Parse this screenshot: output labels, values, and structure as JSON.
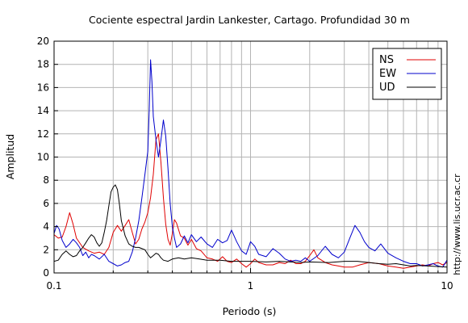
{
  "chart_data": {
    "type": "line",
    "title": "Cociente espectral Jardin Lankester, Cartago. Profundidad 30 m",
    "xlabel": "Periodo (s)",
    "ylabel": "Amplitud",
    "x_scale": "log",
    "xlim": [
      0.1,
      10
    ],
    "ylim": [
      0,
      20
    ],
    "x_ticks": [
      0.1,
      1,
      10
    ],
    "x_tick_labels": [
      "0.1",
      "1",
      "10"
    ],
    "y_ticks": [
      0,
      2,
      4,
      6,
      8,
      10,
      12,
      14,
      16,
      18,
      20
    ],
    "y_tick_labels": [
      "0",
      "2",
      "4",
      "6",
      "8",
      "10",
      "12",
      "14",
      "16",
      "18",
      "20"
    ],
    "grid": true,
    "legend_position": "top-right",
    "side_text": "http://www.lis.ucr.ac.cr",
    "series": [
      {
        "name": "NS",
        "color": "#e00000",
        "points": [
          [
            0.1,
            3.3
          ],
          [
            0.105,
            3.0
          ],
          [
            0.11,
            3.1
          ],
          [
            0.115,
            4.0
          ],
          [
            0.12,
            5.2
          ],
          [
            0.125,
            4.2
          ],
          [
            0.13,
            3.0
          ],
          [
            0.14,
            2.2
          ],
          [
            0.15,
            1.9
          ],
          [
            0.16,
            1.7
          ],
          [
            0.17,
            1.8
          ],
          [
            0.18,
            1.6
          ],
          [
            0.19,
            2.2
          ],
          [
            0.2,
            3.5
          ],
          [
            0.21,
            4.1
          ],
          [
            0.22,
            3.6
          ],
          [
            0.23,
            4.1
          ],
          [
            0.24,
            4.6
          ],
          [
            0.25,
            3.5
          ],
          [
            0.26,
            2.5
          ],
          [
            0.27,
            2.9
          ],
          [
            0.28,
            3.8
          ],
          [
            0.29,
            4.4
          ],
          [
            0.3,
            5.2
          ],
          [
            0.31,
            6.5
          ],
          [
            0.32,
            8.5
          ],
          [
            0.33,
            11.5
          ],
          [
            0.34,
            12.0
          ],
          [
            0.35,
            9.5
          ],
          [
            0.36,
            6.5
          ],
          [
            0.37,
            4.2
          ],
          [
            0.38,
            2.9
          ],
          [
            0.39,
            2.4
          ],
          [
            0.4,
            3.4
          ],
          [
            0.41,
            4.6
          ],
          [
            0.42,
            4.3
          ],
          [
            0.44,
            3.2
          ],
          [
            0.46,
            3.0
          ],
          [
            0.48,
            2.4
          ],
          [
            0.5,
            2.9
          ],
          [
            0.53,
            2.1
          ],
          [
            0.56,
            1.9
          ],
          [
            0.6,
            1.3
          ],
          [
            0.64,
            1.2
          ],
          [
            0.68,
            1.0
          ],
          [
            0.72,
            1.4
          ],
          [
            0.76,
            1.0
          ],
          [
            0.8,
            0.9
          ],
          [
            0.85,
            1.2
          ],
          [
            0.9,
            0.8
          ],
          [
            0.95,
            0.5
          ],
          [
            1.0,
            0.8
          ],
          [
            1.05,
            1.2
          ],
          [
            1.1,
            0.9
          ],
          [
            1.2,
            0.7
          ],
          [
            1.3,
            0.7
          ],
          [
            1.4,
            0.9
          ],
          [
            1.5,
            0.8
          ],
          [
            1.6,
            1.1
          ],
          [
            1.7,
            0.8
          ],
          [
            1.8,
            0.8
          ],
          [
            1.9,
            1.0
          ],
          [
            2.0,
            1.5
          ],
          [
            2.1,
            2.0
          ],
          [
            2.2,
            1.3
          ],
          [
            2.4,
            0.9
          ],
          [
            2.6,
            0.7
          ],
          [
            2.8,
            0.6
          ],
          [
            3.0,
            0.5
          ],
          [
            3.3,
            0.5
          ],
          [
            3.6,
            0.7
          ],
          [
            4.0,
            0.9
          ],
          [
            4.5,
            0.8
          ],
          [
            5.0,
            0.6
          ],
          [
            5.5,
            0.5
          ],
          [
            6.0,
            0.4
          ],
          [
            6.5,
            0.5
          ],
          [
            7.0,
            0.6
          ],
          [
            7.5,
            0.7
          ],
          [
            8.0,
            0.6
          ],
          [
            8.5,
            0.8
          ],
          [
            9.0,
            0.9
          ],
          [
            9.5,
            0.7
          ],
          [
            10.0,
            0.9
          ]
        ]
      },
      {
        "name": "EW",
        "color": "#0000cc",
        "points": [
          [
            0.1,
            3.4
          ],
          [
            0.103,
            4.1
          ],
          [
            0.106,
            3.8
          ],
          [
            0.11,
            2.8
          ],
          [
            0.115,
            2.2
          ],
          [
            0.12,
            2.5
          ],
          [
            0.125,
            2.9
          ],
          [
            0.13,
            2.6
          ],
          [
            0.135,
            2.2
          ],
          [
            0.14,
            1.5
          ],
          [
            0.145,
            1.8
          ],
          [
            0.15,
            1.3
          ],
          [
            0.155,
            1.6
          ],
          [
            0.16,
            1.5
          ],
          [
            0.17,
            1.2
          ],
          [
            0.18,
            1.6
          ],
          [
            0.19,
            1.0
          ],
          [
            0.2,
            0.8
          ],
          [
            0.21,
            0.6
          ],
          [
            0.22,
            0.7
          ],
          [
            0.23,
            0.9
          ],
          [
            0.24,
            1.0
          ],
          [
            0.25,
            1.8
          ],
          [
            0.26,
            3.0
          ],
          [
            0.27,
            4.5
          ],
          [
            0.28,
            6.5
          ],
          [
            0.29,
            8.5
          ],
          [
            0.3,
            10.5
          ],
          [
            0.305,
            14.0
          ],
          [
            0.31,
            18.4
          ],
          [
            0.315,
            16.5
          ],
          [
            0.32,
            13.5
          ],
          [
            0.33,
            11.5
          ],
          [
            0.34,
            10.0
          ],
          [
            0.35,
            11.5
          ],
          [
            0.36,
            13.2
          ],
          [
            0.37,
            11.8
          ],
          [
            0.38,
            9.0
          ],
          [
            0.39,
            6.0
          ],
          [
            0.4,
            4.0
          ],
          [
            0.41,
            3.0
          ],
          [
            0.42,
            2.2
          ],
          [
            0.44,
            2.5
          ],
          [
            0.46,
            3.2
          ],
          [
            0.48,
            2.6
          ],
          [
            0.5,
            3.3
          ],
          [
            0.53,
            2.7
          ],
          [
            0.56,
            3.1
          ],
          [
            0.6,
            2.5
          ],
          [
            0.64,
            2.2
          ],
          [
            0.68,
            2.9
          ],
          [
            0.72,
            2.6
          ],
          [
            0.76,
            2.8
          ],
          [
            0.8,
            3.7
          ],
          [
            0.85,
            2.7
          ],
          [
            0.9,
            1.9
          ],
          [
            0.95,
            1.6
          ],
          [
            1.0,
            2.7
          ],
          [
            1.05,
            2.3
          ],
          [
            1.1,
            1.6
          ],
          [
            1.2,
            1.4
          ],
          [
            1.3,
            2.1
          ],
          [
            1.4,
            1.7
          ],
          [
            1.5,
            1.2
          ],
          [
            1.6,
            1.0
          ],
          [
            1.7,
            1.1
          ],
          [
            1.8,
            1.0
          ],
          [
            1.9,
            1.3
          ],
          [
            2.0,
            1.0
          ],
          [
            2.2,
            1.5
          ],
          [
            2.4,
            2.3
          ],
          [
            2.6,
            1.6
          ],
          [
            2.8,
            1.3
          ],
          [
            3.0,
            1.8
          ],
          [
            3.2,
            3.0
          ],
          [
            3.4,
            4.1
          ],
          [
            3.6,
            3.5
          ],
          [
            3.8,
            2.7
          ],
          [
            4.0,
            2.2
          ],
          [
            4.3,
            1.9
          ],
          [
            4.6,
            2.5
          ],
          [
            5.0,
            1.7
          ],
          [
            5.5,
            1.3
          ],
          [
            6.0,
            1.0
          ],
          [
            6.5,
            0.8
          ],
          [
            7.0,
            0.8
          ],
          [
            7.5,
            0.6
          ],
          [
            8.0,
            0.7
          ],
          [
            8.5,
            0.8
          ],
          [
            9.0,
            0.6
          ],
          [
            9.5,
            0.5
          ],
          [
            10.0,
            1.1
          ]
        ]
      },
      {
        "name": "UD",
        "color": "#000000",
        "points": [
          [
            0.1,
            1.0
          ],
          [
            0.105,
            1.1
          ],
          [
            0.11,
            1.6
          ],
          [
            0.115,
            1.9
          ],
          [
            0.12,
            1.6
          ],
          [
            0.125,
            1.4
          ],
          [
            0.13,
            1.5
          ],
          [
            0.135,
            1.9
          ],
          [
            0.14,
            2.2
          ],
          [
            0.145,
            2.6
          ],
          [
            0.15,
            3.0
          ],
          [
            0.155,
            3.3
          ],
          [
            0.16,
            3.1
          ],
          [
            0.165,
            2.6
          ],
          [
            0.17,
            2.3
          ],
          [
            0.175,
            2.6
          ],
          [
            0.18,
            3.5
          ],
          [
            0.185,
            4.5
          ],
          [
            0.19,
            5.8
          ],
          [
            0.195,
            7.0
          ],
          [
            0.2,
            7.4
          ],
          [
            0.205,
            7.6
          ],
          [
            0.21,
            7.2
          ],
          [
            0.215,
            6.0
          ],
          [
            0.22,
            4.5
          ],
          [
            0.23,
            3.2
          ],
          [
            0.24,
            2.5
          ],
          [
            0.25,
            2.3
          ],
          [
            0.26,
            2.2
          ],
          [
            0.27,
            2.2
          ],
          [
            0.28,
            2.1
          ],
          [
            0.29,
            2.0
          ],
          [
            0.3,
            1.6
          ],
          [
            0.31,
            1.3
          ],
          [
            0.32,
            1.5
          ],
          [
            0.33,
            1.7
          ],
          [
            0.34,
            1.6
          ],
          [
            0.35,
            1.3
          ],
          [
            0.36,
            1.1
          ],
          [
            0.38,
            1.0
          ],
          [
            0.4,
            1.2
          ],
          [
            0.43,
            1.3
          ],
          [
            0.46,
            1.2
          ],
          [
            0.5,
            1.3
          ],
          [
            0.55,
            1.2
          ],
          [
            0.6,
            1.1
          ],
          [
            0.7,
            1.1
          ],
          [
            0.8,
            1.0
          ],
          [
            0.9,
            1.0
          ],
          [
            1.0,
            1.0
          ],
          [
            1.2,
            0.95
          ],
          [
            1.4,
            1.0
          ],
          [
            1.6,
            0.95
          ],
          [
            1.8,
            0.9
          ],
          [
            2.0,
            0.95
          ],
          [
            2.5,
            0.9
          ],
          [
            3.0,
            1.0
          ],
          [
            3.5,
            1.0
          ],
          [
            4.0,
            0.9
          ],
          [
            4.5,
            0.8
          ],
          [
            5.0,
            0.75
          ],
          [
            5.5,
            0.8
          ],
          [
            6.0,
            0.7
          ],
          [
            6.5,
            0.6
          ],
          [
            7.0,
            0.65
          ],
          [
            8.0,
            0.6
          ],
          [
            9.0,
            0.55
          ],
          [
            10.0,
            0.5
          ]
        ]
      }
    ]
  }
}
